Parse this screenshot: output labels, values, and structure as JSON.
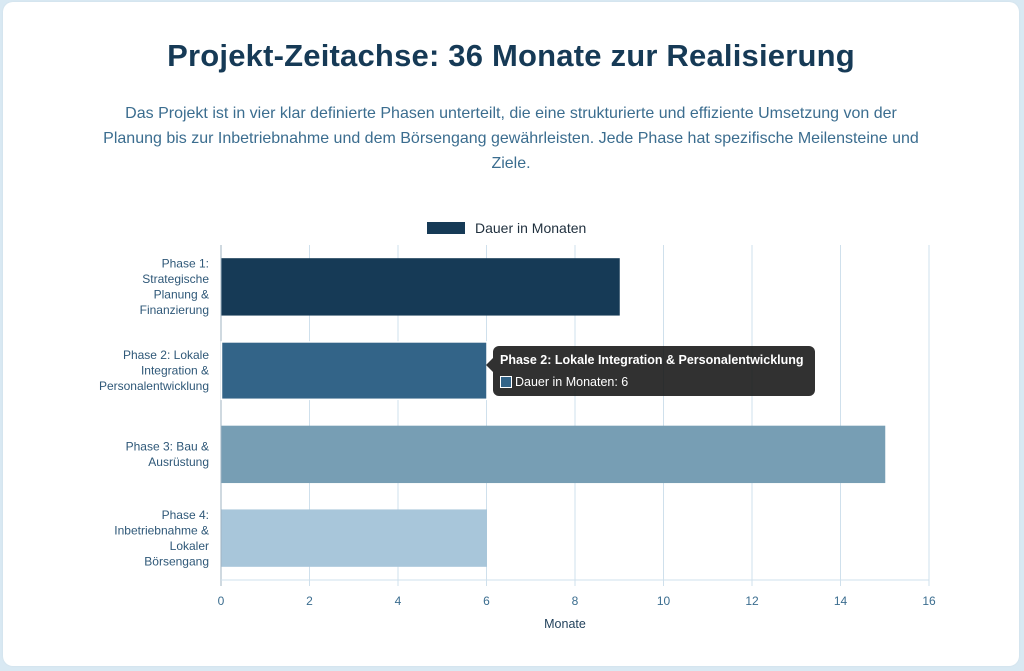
{
  "header": {
    "title": "Projekt-Zeitachse: 36 Monate zur Realisierung",
    "intro": "Das Projekt ist in vier klar definierte Phasen unterteilt, die eine strukturierte und effiziente Umsetzung von der Planung bis zur Inbetriebnahme und dem Börsengang gewährleisten. Jede Phase hat spezifische Meilensteine und Ziele."
  },
  "chart_data": {
    "type": "bar",
    "orientation": "horizontal",
    "categories": [
      [
        "Phase 1:",
        "Strategische",
        "Planung &",
        "Finanzierung"
      ],
      [
        "Phase 2: Lokale",
        "Integration &",
        "Personalentwicklung"
      ],
      [
        "Phase 3: Bau &",
        "Ausrüstung"
      ],
      [
        "Phase 4:",
        "Inbetriebnahme &",
        "Lokaler",
        "Börsengang"
      ]
    ],
    "series": [
      {
        "name": "Dauer in Monaten",
        "values": [
          9,
          6,
          15,
          6
        ],
        "colors": [
          "#163a56",
          "#336488",
          "#779eb4",
          "#a8c6da"
        ]
      }
    ],
    "xlabel": "Monate",
    "xlim": [
      0,
      16
    ],
    "xticks": [
      0,
      2,
      4,
      6,
      8,
      10,
      12,
      14,
      16
    ],
    "grid": true,
    "legend_position": "top",
    "legend_color": "#163a56"
  },
  "tooltip": {
    "title": "Phase 2: Lokale Integration & Personalentwicklung",
    "body": "Dauer in Monaten: 6",
    "swatch_color": "#336488"
  }
}
